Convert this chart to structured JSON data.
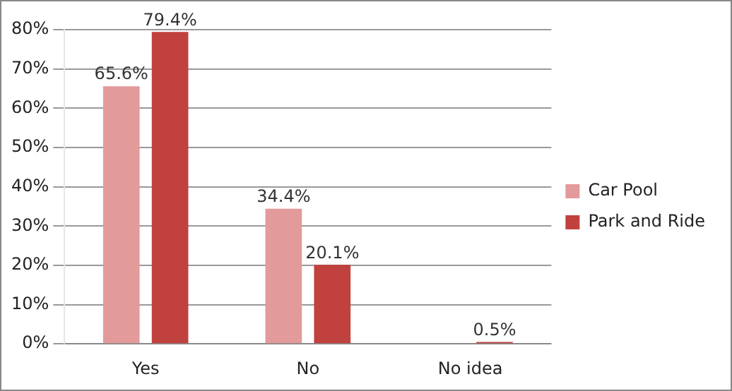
{
  "chart_data": {
    "type": "bar",
    "categories": [
      "Yes",
      "No",
      "No idea"
    ],
    "series": [
      {
        "name": "Car Pool",
        "color": "#e39a9a",
        "values": [
          65.6,
          34.4,
          0
        ],
        "value_labels": [
          "65.6%",
          "34.4%",
          null
        ]
      },
      {
        "name": "Park and Ride",
        "color": "#c0413d",
        "values": [
          79.4,
          20.1,
          0.5
        ],
        "value_labels": [
          "79.4%",
          "20.1%",
          "0.5%"
        ]
      }
    ],
    "ylim": [
      0,
      80
    ],
    "yticks": [
      {
        "value": 0,
        "label": "0%"
      },
      {
        "value": 10,
        "label": "10%"
      },
      {
        "value": 20,
        "label": "20%"
      },
      {
        "value": 30,
        "label": "30%"
      },
      {
        "value": 40,
        "label": "40%"
      },
      {
        "value": 50,
        "label": "50%"
      },
      {
        "value": 60,
        "label": "60%"
      },
      {
        "value": 70,
        "label": "70%"
      },
      {
        "value": 80,
        "label": "80%"
      }
    ],
    "grid": "y",
    "legend": "right"
  }
}
